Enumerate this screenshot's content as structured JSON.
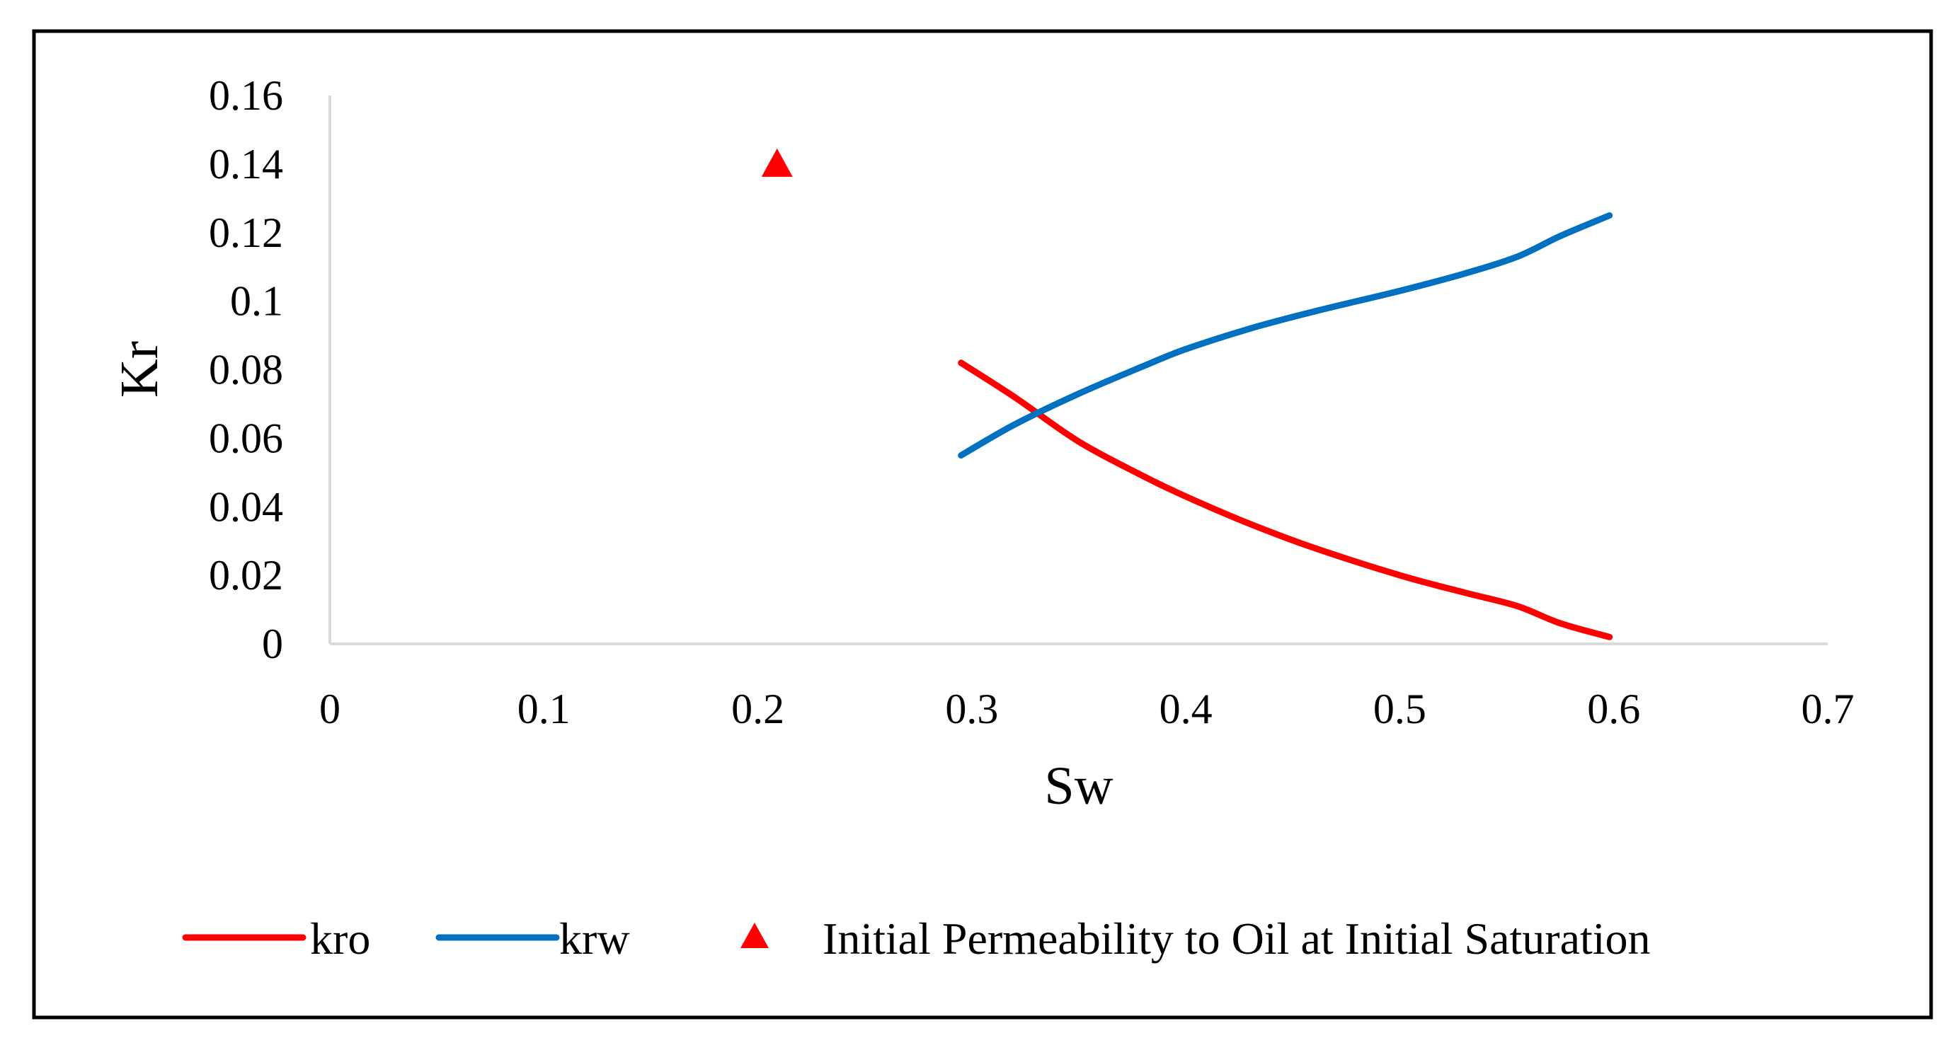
{
  "chart_data": {
    "type": "line",
    "title": "",
    "xlabel": "Sw",
    "ylabel": "Kr",
    "xlim": [
      0,
      0.7
    ],
    "ylim": [
      0,
      0.16
    ],
    "x_ticks": [
      0,
      0.1,
      0.2,
      0.3,
      0.4,
      0.5,
      0.6,
      0.7
    ],
    "x_tick_labels": [
      "0",
      "0.1",
      "0.2",
      "0.3",
      "0.4",
      "0.5",
      "0.6",
      "0.7"
    ],
    "y_ticks": [
      0,
      0.02,
      0.04,
      0.06,
      0.08,
      0.1,
      0.12,
      0.14,
      0.16
    ],
    "y_tick_labels": [
      "0",
      "0.02",
      "0.04",
      "0.06",
      "0.08",
      "0.1",
      "0.12",
      "0.14",
      "0.16"
    ],
    "grid": false,
    "legend_position": "bottom",
    "series": [
      {
        "name": "kro",
        "color": "#ff0000",
        "marker": "line",
        "x": [
          0.295,
          0.32,
          0.35,
          0.38,
          0.4,
          0.43,
          0.46,
          0.5,
          0.53,
          0.555,
          0.575,
          0.598
        ],
        "y": [
          0.082,
          0.072,
          0.059,
          0.049,
          0.043,
          0.035,
          0.028,
          0.02,
          0.015,
          0.011,
          0.006,
          0.002
        ]
      },
      {
        "name": "krw",
        "color": "#0070c0",
        "marker": "line",
        "x": [
          0.295,
          0.32,
          0.35,
          0.38,
          0.4,
          0.43,
          0.46,
          0.5,
          0.53,
          0.555,
          0.575,
          0.598
        ],
        "y": [
          0.055,
          0.064,
          0.073,
          0.081,
          0.086,
          0.092,
          0.097,
          0.103,
          0.108,
          0.113,
          0.119,
          0.125
        ]
      },
      {
        "name": "Initial Permeability to Oil at Initial Saturation",
        "color": "#ff0000",
        "marker": "triangle",
        "x": [
          0.209
        ],
        "y": [
          0.14
        ]
      }
    ]
  }
}
